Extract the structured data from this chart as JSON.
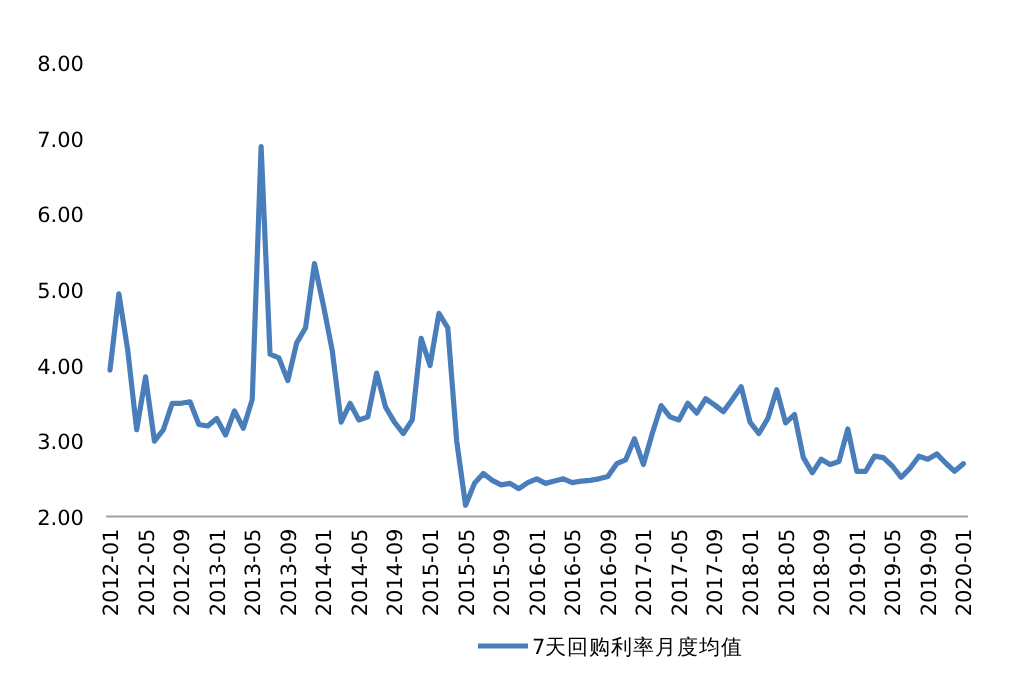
{
  "chart_data": {
    "type": "line",
    "categories": [
      "2012-01",
      null,
      null,
      null,
      "2012-05",
      null,
      null,
      null,
      "2012-09",
      null,
      null,
      null,
      "2013-01",
      null,
      null,
      null,
      "2013-05",
      null,
      null,
      null,
      "2013-09",
      null,
      null,
      null,
      "2014-01",
      null,
      null,
      null,
      "2014-05",
      null,
      null,
      null,
      "2014-09",
      null,
      null,
      null,
      "2015-01",
      null,
      null,
      null,
      "2015-05",
      null,
      null,
      null,
      "2015-09",
      null,
      null,
      null,
      "2016-01",
      null,
      null,
      null,
      "2016-05",
      null,
      null,
      null,
      "2016-09",
      null,
      null,
      null,
      "2017-01",
      null,
      null,
      null,
      "2017-05",
      null,
      null,
      null,
      "2017-09",
      null,
      null,
      null,
      "2018-01",
      null,
      null,
      null,
      "2018-05",
      null,
      null,
      null,
      "2018-09",
      null,
      null,
      null,
      "2019-01",
      null,
      null,
      null,
      "2019-05",
      null,
      null,
      null,
      "2019-09",
      null,
      null,
      null,
      "2020-01"
    ],
    "series": [
      {
        "name": "7天回购利率月度均值",
        "color": "#4a7ebb",
        "values": [
          3.94,
          4.95,
          4.2,
          3.15,
          3.85,
          3.0,
          3.15,
          3.5,
          3.5,
          3.52,
          3.22,
          3.2,
          3.3,
          3.08,
          3.4,
          3.17,
          3.55,
          6.9,
          4.15,
          4.1,
          3.8,
          4.3,
          4.5,
          5.35,
          4.8,
          4.2,
          3.25,
          3.5,
          3.28,
          3.32,
          3.9,
          3.45,
          3.25,
          3.1,
          3.28,
          4.36,
          4.0,
          4.69,
          4.5,
          3.0,
          2.15,
          2.44,
          2.57,
          2.48,
          2.42,
          2.44,
          2.37,
          2.45,
          2.5,
          2.44,
          2.47,
          2.5,
          2.45,
          2.47,
          2.48,
          2.5,
          2.53,
          2.7,
          2.75,
          3.03,
          2.69,
          3.1,
          3.47,
          3.32,
          3.28,
          3.5,
          3.37,
          3.56,
          3.48,
          3.39,
          3.55,
          3.72,
          3.25,
          3.1,
          3.3,
          3.68,
          3.24,
          3.35,
          2.78,
          2.58,
          2.76,
          2.69,
          2.73,
          3.16,
          2.6,
          2.6,
          2.8,
          2.78,
          2.67,
          2.52,
          2.64,
          2.8,
          2.76,
          2.83,
          2.71,
          2.6,
          2.7
        ]
      }
    ],
    "ylim": [
      2,
      8
    ],
    "yticks": [
      {
        "value": 2,
        "label": "2.00"
      },
      {
        "value": 3,
        "label": "3.00"
      },
      {
        "value": 4,
        "label": "4.00"
      },
      {
        "value": 5,
        "label": "5.00"
      },
      {
        "value": 6,
        "label": "6.00"
      },
      {
        "value": 7,
        "label": "7.00"
      },
      {
        "value": 8,
        "label": "8.00"
      }
    ],
    "legend": "bottom"
  }
}
